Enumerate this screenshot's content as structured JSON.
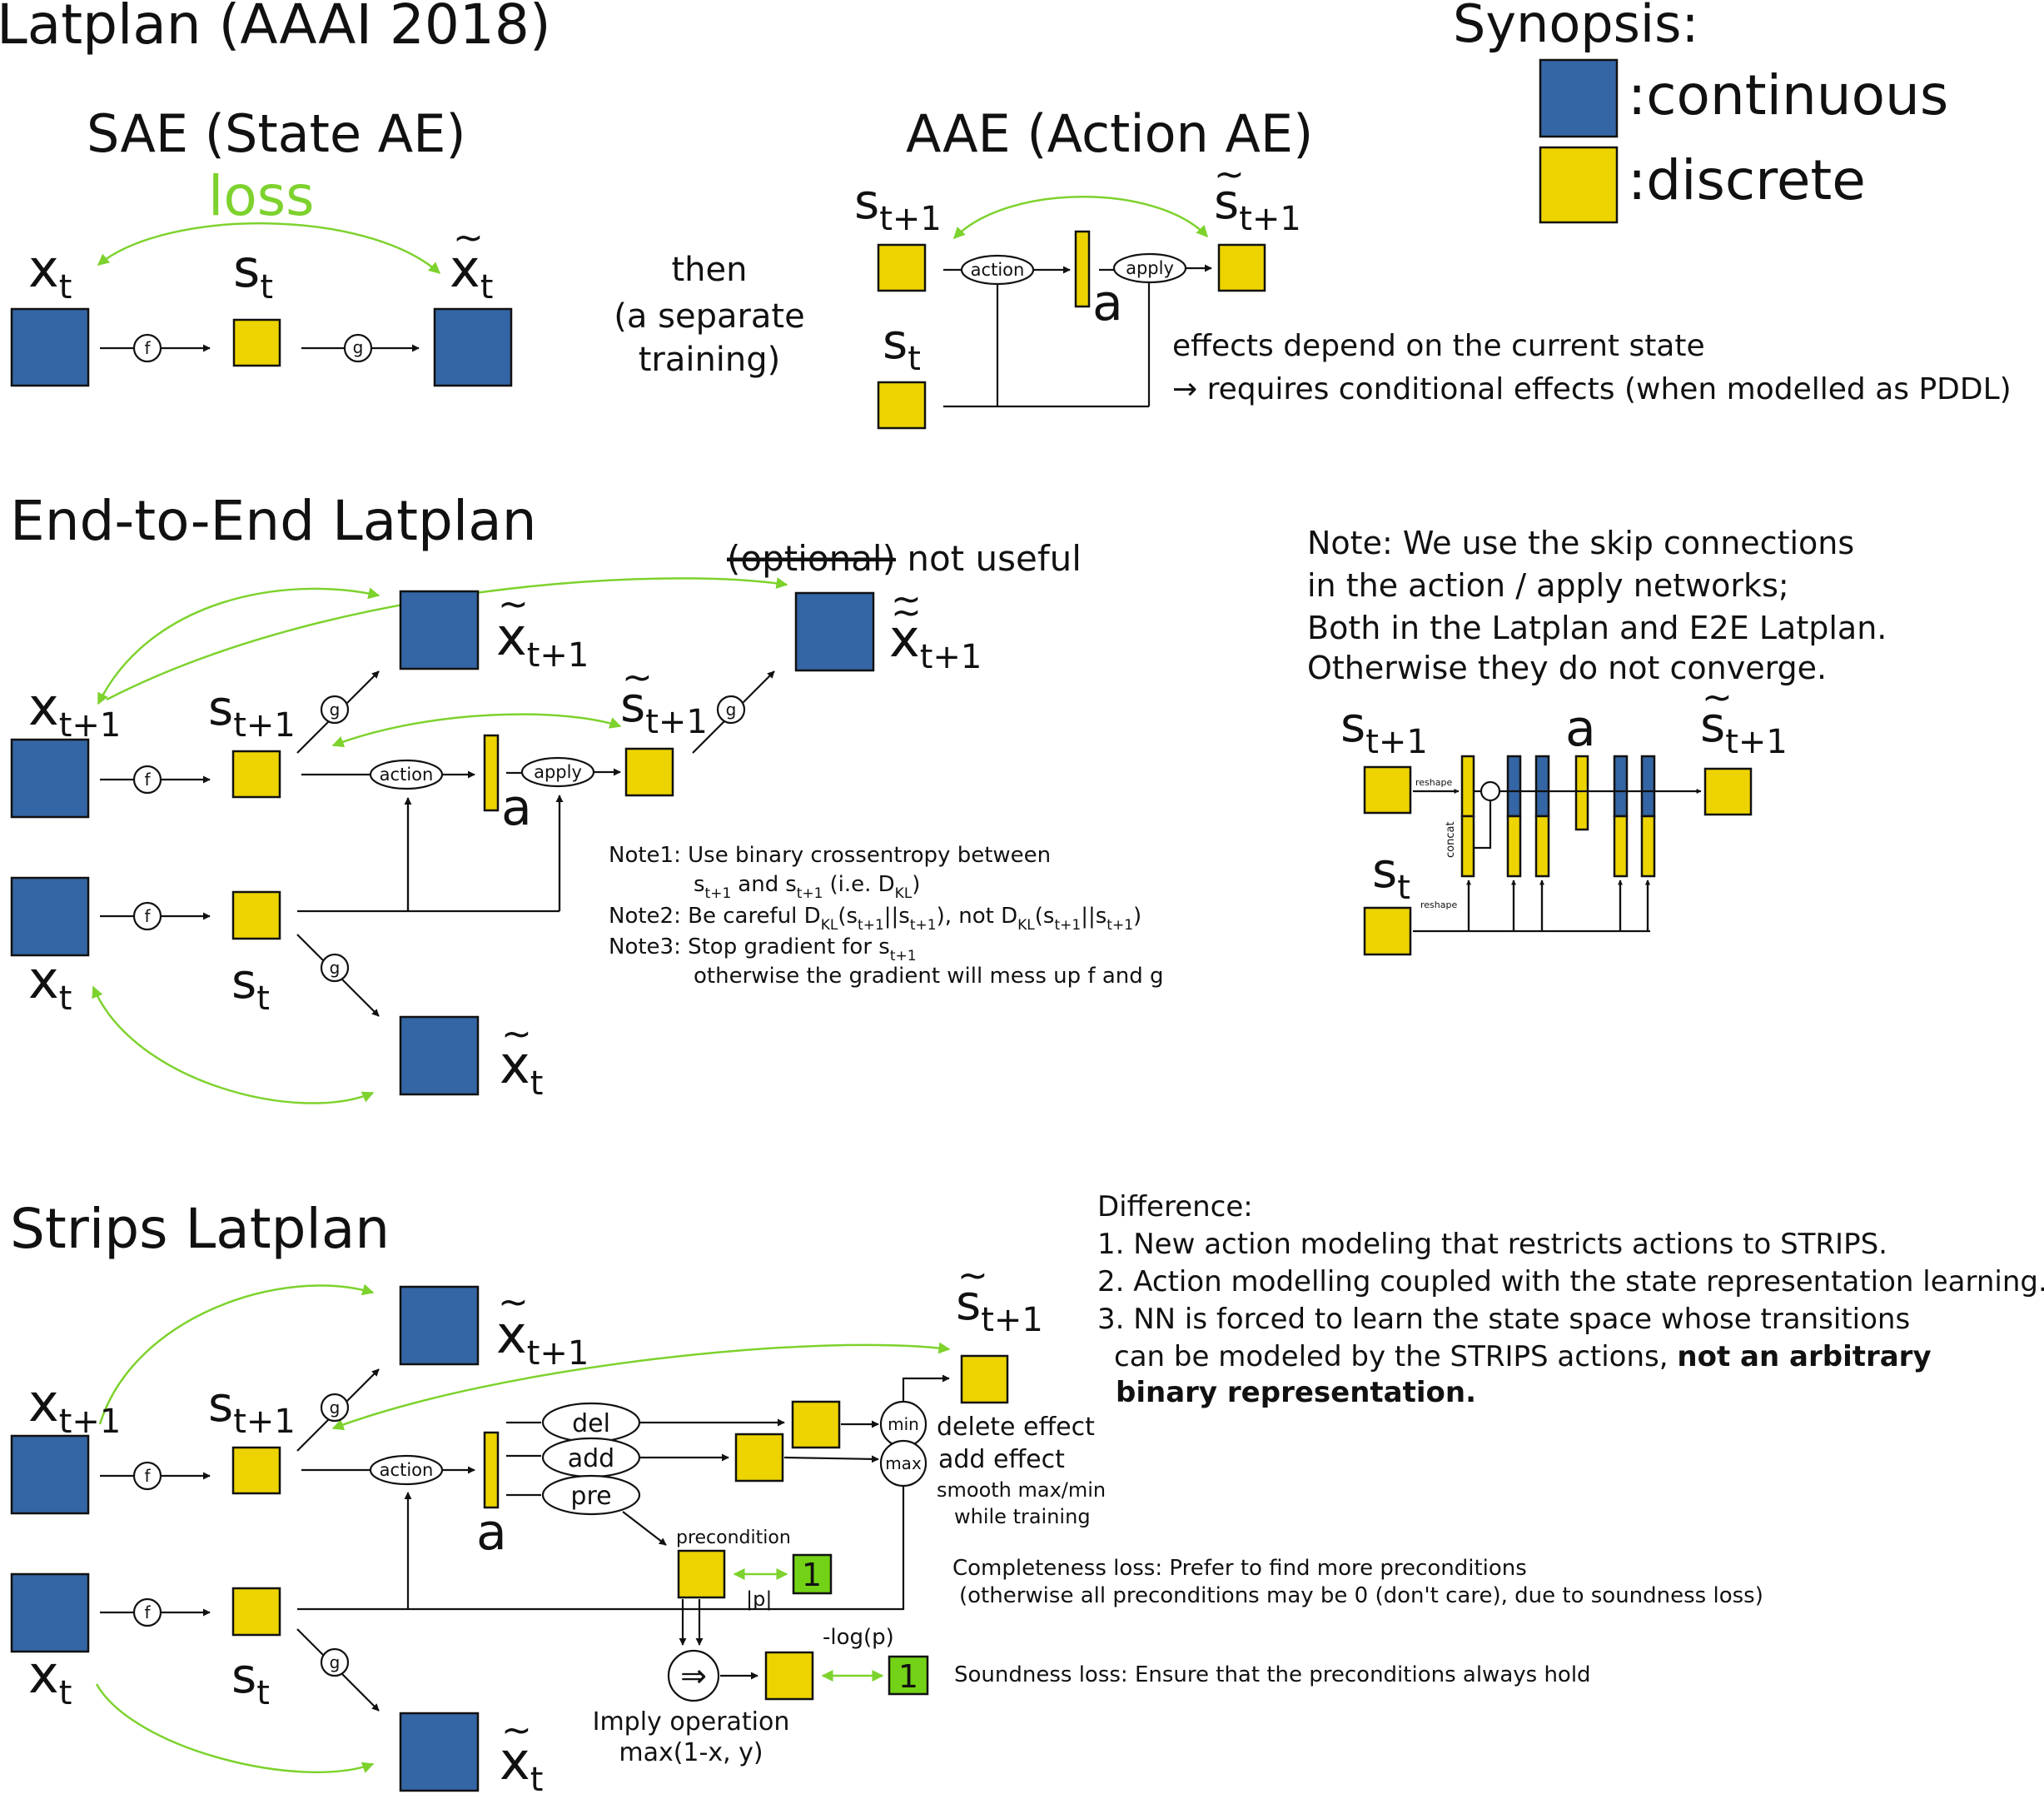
{
  "title": "Latplan (AAAI 2018)",
  "synopsis": {
    "heading": "Synopsis:",
    "continuous": ":continuous",
    "discrete": ":discrete",
    "colors": {
      "continuous": "#3465a4",
      "discrete": "#edd400",
      "arrow": "#7dd22d",
      "constant": "#73d216"
    }
  },
  "sae": {
    "heading": "SAE (State AE)",
    "loss": "loss",
    "f": "f",
    "g": "g"
  },
  "middle": {
    "line1": "then",
    "line2": "(a separate",
    "line3": "training)"
  },
  "aae": {
    "heading": "AAE (Action AE)",
    "action": "action",
    "apply": "apply",
    "a": "a",
    "effects1": "effects depend on the current state",
    "effects2": "→ requires conditional effects (when modelled as PDDL)"
  },
  "e2e": {
    "heading": "End-to-End Latplan",
    "optional": "(optional)",
    "not_useful": " not useful",
    "note_skip": [
      "Note: We use the skip connections",
      "in the action / apply networks;",
      "Both in the Latplan and E2E Latplan.",
      "Otherwise they do not converge."
    ],
    "reshape": "reshape",
    "concat": "concat",
    "note1_a": "Note1: Use binary crossentropy between",
    "note1_b": "and",
    "note1_c": "(i.e. D",
    "note2_a": "Note2: Be careful D",
    "note2_b": ", not D",
    "note3_a": "Note3: Stop gradient for s",
    "note3_b": "otherwise the gradient will mess up f and g"
  },
  "strips": {
    "heading": "Strips Latplan",
    "difference": [
      "Difference:",
      "1. New action modeling that restricts actions to STRIPS.",
      "2. Action modelling coupled with the state representation learning.",
      "3. NN is forced to learn the state space whose transitions"
    ],
    "diff_line5": "can be modeled by the STRIPS actions, ",
    "diff_bold1": "not an arbitrary",
    "diff_bold2": "binary representation.",
    "del": "del",
    "add": "add",
    "pre": "pre",
    "min": "min",
    "max": "max",
    "delete_effect": "delete effect",
    "add_effect": "add effect",
    "smooth1": "smooth max/min",
    "smooth2": "while training",
    "precondition": "precondition",
    "one": "1",
    "abs_p": "|p|",
    "neglog": "-log(p)",
    "completeness1": "Completeness loss: Prefer to find more preconditions",
    "completeness2": "(otherwise all preconditions may be 0 (don't care), due to soundness loss)",
    "soundness": "Soundness loss: Ensure that the preconditions always hold",
    "imply1": "Imply operation",
    "imply2": "max(1-x, y)"
  }
}
